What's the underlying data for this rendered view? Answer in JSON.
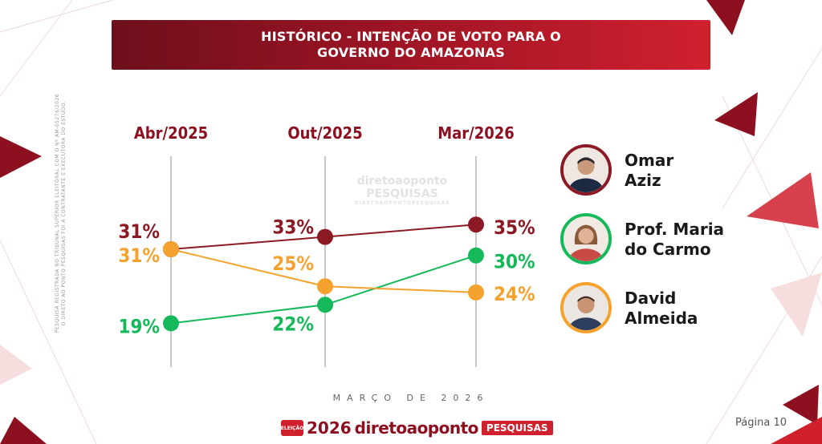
{
  "title": {
    "line1": "HISTÓRICO - INTENÇÃO DE VOTO PARA O",
    "line2": "GOVERNO DO AMAZONAS"
  },
  "side_note": {
    "line1": "PESQUISA REGISTRADA NO TRIBUNAL SUPERIOR ELEITORAL COM O Nº AM-05276/2026",
    "line2": "O DIRETO AO PONTO PESQUISAS FOI A CONTRATANTE E EXECUTORA DO ESTUDO."
  },
  "watermark": {
    "brand": "diretoaoponto PESQUISAS",
    "sub": "DIRETOAOPONTOPESQUISAS"
  },
  "chart_data": {
    "type": "line",
    "title": "HISTÓRICO - INTENÇÃO DE VOTO PARA O GOVERNO DO AMAZONAS",
    "categories": [
      "Abr/2025",
      "Out/2025",
      "Mar/2026"
    ],
    "series": [
      {
        "name": "Omar Aziz",
        "color": "#8c1a24",
        "values": [
          31,
          33,
          35
        ],
        "labels": [
          "31%",
          "33%",
          "35%"
        ]
      },
      {
        "name": "Prof. Maria do Carmo",
        "color": "#16b95a",
        "values": [
          19,
          22,
          30
        ],
        "labels": [
          "19%",
          "22%",
          "30%"
        ]
      },
      {
        "name": "David Almeida",
        "color": "#f4a22d",
        "values": [
          31,
          25,
          24
        ],
        "labels": [
          "31%",
          "25%",
          "24%"
        ]
      }
    ],
    "ylim": [
      15,
      40
    ],
    "grid": "vertical lines at each period",
    "legend": "right"
  },
  "legend": [
    {
      "name_line1": "Omar",
      "name_line2": "Aziz",
      "ring_color": "#8c1a24",
      "icon": "portrait-omar-aziz"
    },
    {
      "name_line1": "Prof. Maria",
      "name_line2": "do Carmo",
      "ring_color": "#16b95a",
      "icon": "portrait-maria-do-carmo"
    },
    {
      "name_line1": "David",
      "name_line2": "Almeida",
      "ring_color": "#f4a22d",
      "icon": "portrait-david-almeida"
    }
  ],
  "footer": {
    "date": "MARÇO DE 2026",
    "badge": "ELEIÇÃO",
    "year": "2026",
    "brand": "diretoaoponto",
    "pesquisas": "PESQUISAS",
    "page": "Página 10"
  }
}
